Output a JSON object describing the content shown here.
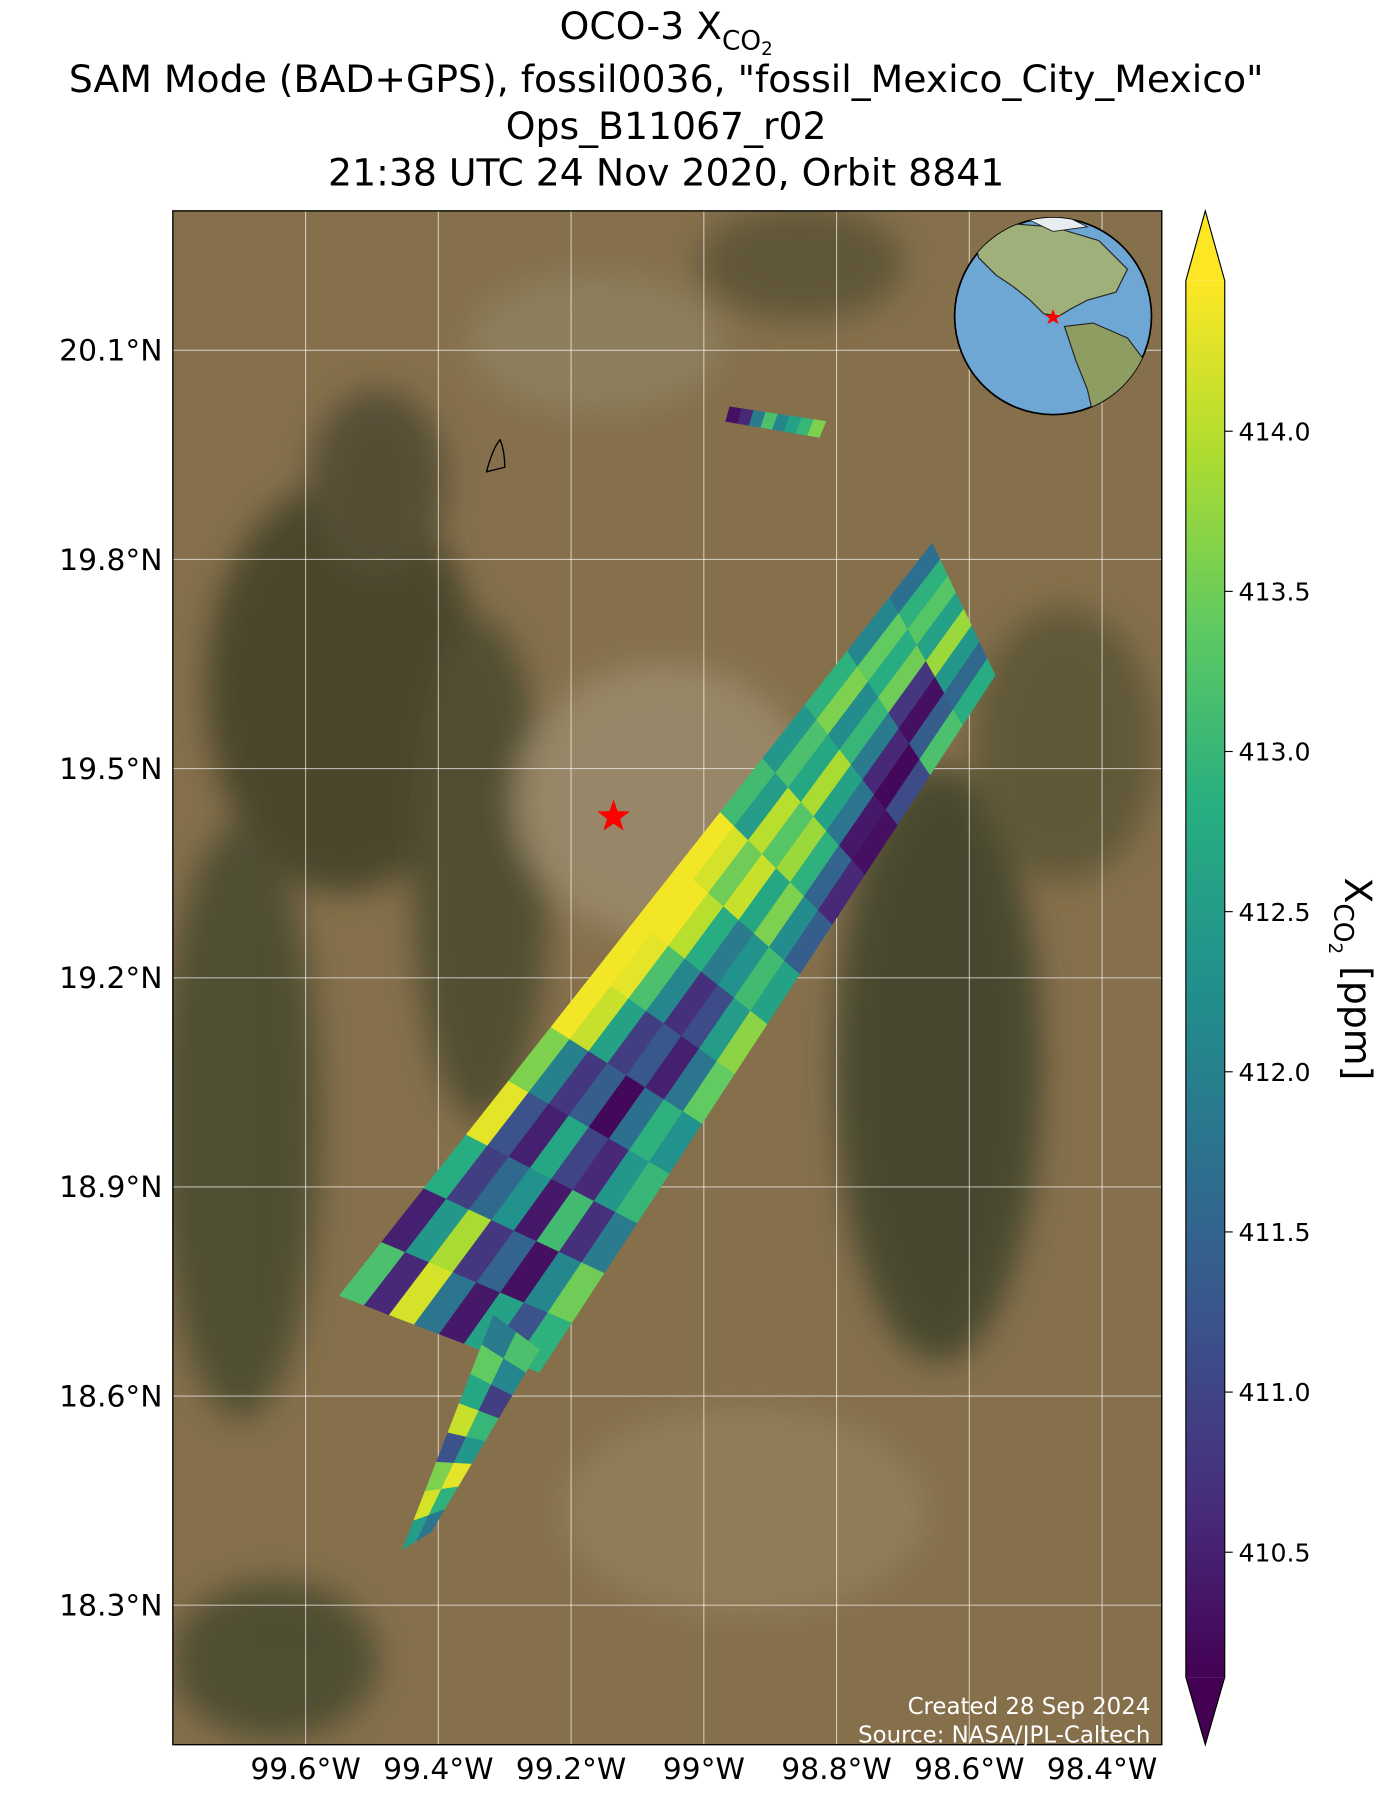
{
  "chart_data": {
    "type": "map",
    "title": {
      "main": "OCO-3 X",
      "sub": "CO",
      "subsub": "2"
    },
    "subtitle_lines": [
      "SAM Mode (BAD+GPS), fossil0036, \"fossil_Mexico_City_Mexico\"",
      "Ops_B11067_r02",
      "21:38 UTC 24 Nov 2020, Orbit 8841"
    ],
    "xlim": [
      -99.8,
      -98.31
    ],
    "ylim": [
      18.1,
      20.3
    ],
    "xticks": [
      {
        "value": -99.6,
        "label": "99.6°W"
      },
      {
        "value": -99.4,
        "label": "99.4°W"
      },
      {
        "value": -99.2,
        "label": "99.2°W"
      },
      {
        "value": -99,
        "label": "99°W"
      },
      {
        "value": -98.8,
        "label": "98.8°W"
      },
      {
        "value": -98.6,
        "label": "98.6°W"
      },
      {
        "value": -98.4,
        "label": "98.4°W"
      }
    ],
    "yticks": [
      {
        "value": 20.1,
        "label": "20.1°N"
      },
      {
        "value": 19.8,
        "label": "19.8°N"
      },
      {
        "value": 19.5,
        "label": "19.5°N"
      },
      {
        "value": 19.2,
        "label": "19.2°N"
      },
      {
        "value": 18.9,
        "label": "18.9°N"
      },
      {
        "value": 18.6,
        "label": "18.6°N"
      },
      {
        "value": 18.3,
        "label": "18.3°N"
      }
    ],
    "grid": true,
    "colormap": "viridis",
    "clim": [
      410.11,
      414.47
    ],
    "colorbar_ticks": [
      {
        "value": 414,
        "label": "414.0"
      },
      413.5,
      {
        "value": 413,
        "label": "413.0"
      },
      412.5,
      {
        "value": 412,
        "label": "412.0"
      },
      411.5,
      {
        "value": 411,
        "label": "411.0"
      },
      410.5
    ],
    "colorbar_label": {
      "main": "X",
      "sub": "CO",
      "subsub": "2",
      "unit": " [ppm]"
    },
    "target": {
      "lon": -99.136,
      "lat": 19.431
    },
    "swaths": [
      {
        "corners": [
          [
            -99.549,
            18.744
          ],
          [
            -98.656,
            19.823
          ],
          [
            -98.561,
            19.634
          ],
          [
            -99.248,
            18.634
          ]
        ],
        "values": [
          [
            413.2,
            410.6,
            414.2,
            411.8,
            410.4,
            412.6,
            411.2,
            412.9
          ],
          [
            410.5,
            412.4,
            413.9,
            410.8,
            411.5,
            410.3,
            412.1,
            413.5
          ],
          [
            412.8,
            410.9,
            411.6,
            412.3,
            410.4,
            413.1,
            410.7,
            411.9
          ],
          [
            414.3,
            411.2,
            410.5,
            412.7,
            411.0,
            410.6,
            412.4,
            413.0
          ],
          [
            413.6,
            412.0,
            410.8,
            411.4,
            410.2,
            411.7,
            412.9,
            412.3
          ],
          [
            414.4,
            414.1,
            412.6,
            410.9,
            411.3,
            410.5,
            411.8,
            413.4
          ],
          [
            414.4,
            414.3,
            413.2,
            412.1,
            410.7,
            411.1,
            412.5,
            413.7
          ],
          [
            414.4,
            414.4,
            414.0,
            412.8,
            411.9,
            412.3,
            413.1,
            412.6
          ],
          [
            414.4,
            414.2,
            413.5,
            414.1,
            412.7,
            413.6,
            412.2,
            411.4
          ],
          [
            413.1,
            412.5,
            414.0,
            413.3,
            413.8,
            412.9,
            411.5,
            410.6
          ],
          [
            412.4,
            413.2,
            412.7,
            413.9,
            412.6,
            411.8,
            410.4,
            410.3
          ],
          [
            412.9,
            413.6,
            412.2,
            413.0,
            411.9,
            410.6,
            410.2,
            411.1
          ],
          [
            412.1,
            413.4,
            412.8,
            413.5,
            410.8,
            410.3,
            411.4,
            413.2
          ],
          [
            411.7,
            412.9,
            413.3,
            412.6,
            413.8,
            412.4,
            411.6,
            412.8
          ]
        ]
      },
      {
        "corners": [
          [
            -99.454,
            18.38
          ],
          [
            -99.317,
            18.716
          ],
          [
            -99.248,
            18.667
          ],
          [
            -99.411,
            18.405
          ]
        ],
        "values": [
          [
            412.5,
            411.8
          ],
          [
            414.2,
            412.9
          ],
          [
            413.6,
            414.3
          ],
          [
            411.2,
            412.4
          ],
          [
            414.1,
            413.0
          ],
          [
            412.7,
            410.9
          ],
          [
            413.4,
            412.1
          ],
          [
            411.9,
            413.2
          ]
        ]
      },
      {
        "corners": [
          [
            -98.961,
            20.019
          ],
          [
            -98.967,
            19.998
          ],
          [
            -98.826,
            19.975
          ],
          [
            -98.816,
            19.998
          ]
        ],
        "values": [
          [
            410.3,
            410.6,
            411.9,
            413.2,
            412.1,
            412.6,
            413.0,
            413.6
          ]
        ]
      }
    ],
    "footer": [
      "Created 28 Sep 2024",
      "Source: NASA/JPL-Caltech"
    ]
  }
}
